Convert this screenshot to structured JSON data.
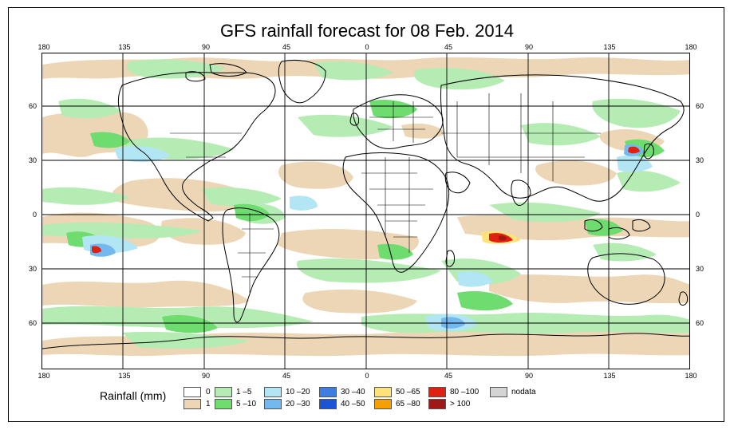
{
  "title": "GFS rainfall forecast for 08 Feb. 2014",
  "lon_labels": [
    "180",
    "135",
    "90",
    "45",
    "0",
    "45",
    "90",
    "135",
    "180"
  ],
  "lat_labels": [
    "60",
    "30",
    "0",
    "30",
    "60"
  ],
  "legend": {
    "title": "Rainfall (mm)",
    "items": [
      {
        "label": "0",
        "color": "#ffffff"
      },
      {
        "label": "1",
        "color": "#ecd6b5"
      },
      {
        "label": "1 –5",
        "color": "#b4ecb4"
      },
      {
        "label": "5 –10",
        "color": "#6fdc6f"
      },
      {
        "label": "10 –20",
        "color": "#b3e6f5"
      },
      {
        "label": "20 –30",
        "color": "#74b8f0"
      },
      {
        "label": "30 –40",
        "color": "#3d7fe0"
      },
      {
        "label": "40 –50",
        "color": "#1a55d8"
      },
      {
        "label": "50 –65",
        "color": "#ffe27a"
      },
      {
        "label": "65 –80",
        "color": "#f5a000"
      },
      {
        "label": "80 –100",
        "color": "#e02010"
      },
      {
        "label": "> 100",
        "color": "#a01818"
      },
      {
        "label": "nodata",
        "color": "#d4d4d4"
      }
    ]
  }
}
